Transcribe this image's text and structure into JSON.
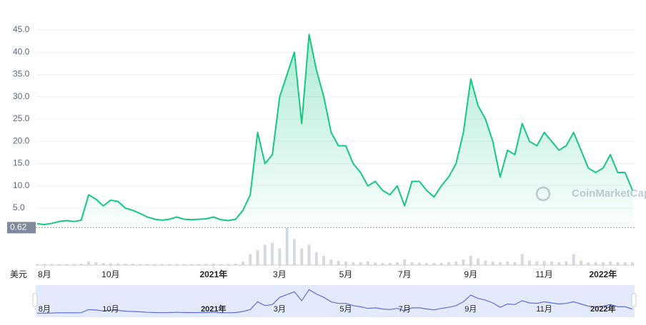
{
  "chart_data": {
    "type": "area",
    "watermark": "CoinMarketCap",
    "currency_label": "美元",
    "categories": [
      null,
      "8月",
      null,
      null,
      null,
      null,
      null,
      null,
      null,
      null,
      "10月",
      null,
      null,
      null,
      null,
      null,
      null,
      null,
      null,
      null,
      null,
      null,
      null,
      null,
      "2021年",
      null,
      null,
      null,
      null,
      null,
      null,
      null,
      null,
      "3月",
      null,
      null,
      null,
      null,
      null,
      null,
      null,
      null,
      "5月",
      null,
      null,
      null,
      null,
      null,
      null,
      null,
      "7月",
      null,
      null,
      null,
      null,
      null,
      null,
      null,
      null,
      "9月",
      null,
      null,
      null,
      null,
      null,
      null,
      null,
      null,
      null,
      "11月",
      null,
      null,
      null,
      null,
      null,
      null,
      null,
      "2022年",
      null,
      null,
      null,
      null
    ],
    "values": [
      1.5,
      1.3,
      1.6,
      2.0,
      2.2,
      2.0,
      2.3,
      8.0,
      7.0,
      5.5,
      6.8,
      6.5,
      5.0,
      4.5,
      3.8,
      3.0,
      2.5,
      2.3,
      2.5,
      3.0,
      2.5,
      2.4,
      2.5,
      2.6,
      3.0,
      2.4,
      2.2,
      2.5,
      4.5,
      8.0,
      22,
      15,
      17,
      30,
      35,
      40,
      24,
      44,
      36,
      30,
      22,
      19,
      19,
      15,
      13,
      10,
      11,
      9,
      8,
      10,
      5.5,
      11,
      11,
      9,
      7.5,
      10,
      12,
      15,
      22,
      34,
      28,
      25,
      20,
      12,
      18,
      17,
      24,
      20,
      19,
      22,
      20,
      18,
      19,
      22,
      18,
      14,
      13,
      14,
      17,
      13,
      13,
      9
    ],
    "volume": [
      3,
      3,
      3,
      3,
      3,
      3,
      4,
      10,
      8,
      6,
      5,
      5,
      4,
      4,
      3,
      3,
      3,
      3,
      3,
      3,
      3,
      3,
      3,
      3,
      4,
      3,
      3,
      4,
      10,
      30,
      40,
      55,
      60,
      45,
      100,
      70,
      45,
      55,
      35,
      25,
      15,
      12,
      10,
      8,
      8,
      10,
      7,
      6,
      6,
      8,
      15,
      8,
      7,
      6,
      6,
      6,
      8,
      10,
      15,
      25,
      18,
      12,
      10,
      8,
      10,
      8,
      30,
      12,
      10,
      12,
      10,
      8,
      10,
      30,
      12,
      8,
      8,
      8,
      10,
      8,
      8,
      8
    ],
    "color": "#16c784",
    "ylim": [
      0.62,
      47
    ],
    "yticks": [
      {
        "value": 5,
        "label": "5.0"
      },
      {
        "value": 10,
        "label": "10.0"
      },
      {
        "value": 15,
        "label": "15.0"
      },
      {
        "value": 20,
        "label": "20.0"
      },
      {
        "value": 25,
        "label": "25.0"
      },
      {
        "value": 30,
        "label": "30.0"
      },
      {
        "value": 35,
        "label": "35.0"
      },
      {
        "value": 40,
        "label": "40.0"
      },
      {
        "value": 45,
        "label": "45.0"
      }
    ],
    "baseline": 0.62,
    "vlim": [
      0,
      100
    ],
    "grid": true
  }
}
